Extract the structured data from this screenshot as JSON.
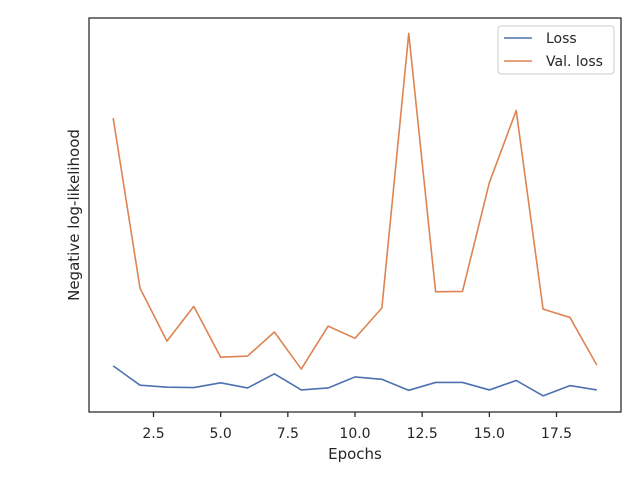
{
  "chart_data": {
    "type": "line",
    "xlabel": "Epochs",
    "ylabel": "Negative log-likelihood",
    "xlim": [
      0.1,
      19.9
    ],
    "ylim": [
      0.0,
      1.0
    ],
    "x_ticks": [
      2.5,
      5.0,
      7.5,
      10.0,
      12.5,
      15.0,
      17.5
    ],
    "x_tick_labels": [
      "2.5",
      "5.0",
      "7.5",
      "10.0",
      "12.5",
      "15.0",
      "17.5"
    ],
    "y_tick_labels_visible": false,
    "grid": false,
    "legend_position": "upper right",
    "x": [
      1,
      2,
      3,
      4,
      5,
      6,
      7,
      8,
      9,
      10,
      11,
      12,
      13,
      14,
      15,
      16,
      17,
      18,
      19
    ],
    "series": [
      {
        "name": "Loss",
        "color": "#4c72b0",
        "values": [
          0.117,
          0.068,
          0.063,
          0.062,
          0.074,
          0.061,
          0.097,
          0.056,
          0.061,
          0.089,
          0.083,
          0.055,
          0.075,
          0.075,
          0.056,
          0.08,
          0.041,
          0.067,
          0.056
        ]
      },
      {
        "name": "Val. loss",
        "color": "#dd8452",
        "values": [
          0.746,
          0.314,
          0.18,
          0.268,
          0.139,
          0.142,
          0.203,
          0.109,
          0.218,
          0.187,
          0.264,
          0.961,
          0.305,
          0.306,
          0.582,
          0.765,
          0.261,
          0.24,
          0.119
        ]
      }
    ]
  }
}
